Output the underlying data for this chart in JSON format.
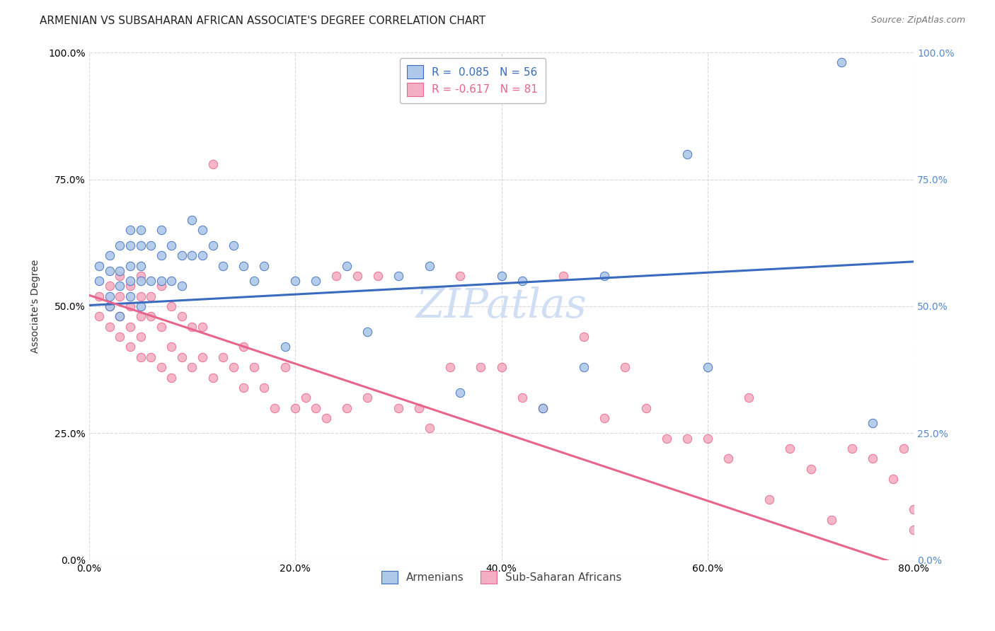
{
  "title": "ARMENIAN VS SUBSAHARAN AFRICAN ASSOCIATE'S DEGREE CORRELATION CHART",
  "source": "Source: ZipAtlas.com",
  "xlim": [
    0.0,
    0.8
  ],
  "ylim": [
    0.0,
    1.0
  ],
  "armenian_R": 0.085,
  "armenian_N": 56,
  "subsaharan_R": -0.617,
  "subsaharan_N": 81,
  "armenian_color": "#adc8e8",
  "subsaharan_color": "#f5afc4",
  "armenian_line_color": "#3a6bbf",
  "subsaharan_line_color": "#e8648a",
  "watermark": "ZIPatlas",
  "watermark_color": "#d0def5",
  "background_color": "#ffffff",
  "grid_color": "#d8d8d8",
  "right_axis_color": "#5588cc",
  "title_fontsize": 11,
  "source_fontsize": 9,
  "legend_fontsize": 11,
  "axis_label": "Associate's Degree",
  "arm_trend_x": [
    0.0,
    0.8
  ],
  "arm_trend_y": [
    0.502,
    0.588
  ],
  "sub_trend_x": [
    0.0,
    0.8
  ],
  "sub_trend_y": [
    0.522,
    -0.018
  ],
  "armenian_x": [
    0.01,
    0.01,
    0.02,
    0.02,
    0.02,
    0.02,
    0.03,
    0.03,
    0.03,
    0.03,
    0.04,
    0.04,
    0.04,
    0.04,
    0.04,
    0.05,
    0.05,
    0.05,
    0.05,
    0.05,
    0.06,
    0.06,
    0.07,
    0.07,
    0.07,
    0.08,
    0.08,
    0.09,
    0.09,
    0.1,
    0.1,
    0.11,
    0.11,
    0.12,
    0.13,
    0.14,
    0.15,
    0.16,
    0.17,
    0.19,
    0.2,
    0.22,
    0.25,
    0.27,
    0.3,
    0.33,
    0.36,
    0.4,
    0.42,
    0.44,
    0.48,
    0.5,
    0.58,
    0.6,
    0.73,
    0.76
  ],
  "armenian_y": [
    0.55,
    0.58,
    0.57,
    0.6,
    0.52,
    0.5,
    0.62,
    0.57,
    0.54,
    0.48,
    0.65,
    0.62,
    0.58,
    0.55,
    0.52,
    0.65,
    0.62,
    0.58,
    0.55,
    0.5,
    0.62,
    0.55,
    0.65,
    0.6,
    0.55,
    0.62,
    0.55,
    0.6,
    0.54,
    0.67,
    0.6,
    0.65,
    0.6,
    0.62,
    0.58,
    0.62,
    0.58,
    0.55,
    0.58,
    0.42,
    0.55,
    0.55,
    0.58,
    0.45,
    0.56,
    0.58,
    0.33,
    0.56,
    0.55,
    0.3,
    0.38,
    0.56,
    0.8,
    0.38,
    0.98,
    0.27
  ],
  "subsaharan_x": [
    0.01,
    0.01,
    0.02,
    0.02,
    0.02,
    0.03,
    0.03,
    0.03,
    0.03,
    0.04,
    0.04,
    0.04,
    0.04,
    0.05,
    0.05,
    0.05,
    0.05,
    0.05,
    0.06,
    0.06,
    0.06,
    0.07,
    0.07,
    0.07,
    0.08,
    0.08,
    0.08,
    0.09,
    0.09,
    0.1,
    0.1,
    0.11,
    0.11,
    0.12,
    0.12,
    0.13,
    0.14,
    0.15,
    0.15,
    0.16,
    0.17,
    0.18,
    0.19,
    0.2,
    0.21,
    0.22,
    0.23,
    0.24,
    0.25,
    0.26,
    0.27,
    0.28,
    0.3,
    0.32,
    0.33,
    0.35,
    0.36,
    0.38,
    0.4,
    0.42,
    0.44,
    0.46,
    0.48,
    0.5,
    0.52,
    0.54,
    0.56,
    0.58,
    0.6,
    0.62,
    0.64,
    0.66,
    0.68,
    0.7,
    0.72,
    0.74,
    0.76,
    0.78,
    0.79,
    0.8,
    0.8
  ],
  "subsaharan_y": [
    0.52,
    0.48,
    0.54,
    0.5,
    0.46,
    0.56,
    0.52,
    0.48,
    0.44,
    0.54,
    0.5,
    0.46,
    0.42,
    0.56,
    0.52,
    0.48,
    0.44,
    0.4,
    0.52,
    0.48,
    0.4,
    0.54,
    0.46,
    0.38,
    0.5,
    0.42,
    0.36,
    0.48,
    0.4,
    0.46,
    0.38,
    0.46,
    0.4,
    0.36,
    0.78,
    0.4,
    0.38,
    0.42,
    0.34,
    0.38,
    0.34,
    0.3,
    0.38,
    0.3,
    0.32,
    0.3,
    0.28,
    0.56,
    0.3,
    0.56,
    0.32,
    0.56,
    0.3,
    0.3,
    0.26,
    0.38,
    0.56,
    0.38,
    0.38,
    0.32,
    0.3,
    0.56,
    0.44,
    0.28,
    0.38,
    0.3,
    0.24,
    0.24,
    0.24,
    0.2,
    0.32,
    0.12,
    0.22,
    0.18,
    0.08,
    0.22,
    0.2,
    0.16,
    0.22,
    0.06,
    0.1
  ]
}
